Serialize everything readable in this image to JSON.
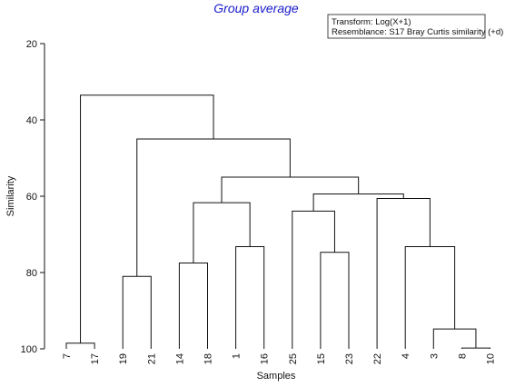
{
  "chart_data": {
    "type": "dendrogram",
    "title": "Group average",
    "xlabel": "Samples",
    "ylabel": "Similarity",
    "ylim": [
      20,
      100
    ],
    "y_inverted": true,
    "yticks": [
      20,
      40,
      60,
      80,
      100
    ],
    "leaves": [
      "7",
      "17",
      "19",
      "21",
      "14",
      "18",
      "1",
      "16",
      "25",
      "15",
      "23",
      "22",
      "4",
      "3",
      "8",
      "10"
    ],
    "merges": [
      {
        "left": "8",
        "right": "10",
        "similarity": 99.8
      },
      {
        "left": "7",
        "right": "17",
        "similarity": 98.5
      },
      {
        "left": "3",
        "right": "(8,10)",
        "similarity": 94.8
      },
      {
        "left": "15",
        "right": "23",
        "similarity": 74.7
      },
      {
        "left": "1",
        "right": "16",
        "similarity": 73.2
      },
      {
        "left": "4",
        "right": "(3,8,10)",
        "similarity": 73.2
      },
      {
        "left": "19",
        "right": "21",
        "similarity": 81.0
      },
      {
        "left": "14",
        "right": "18",
        "similarity": 77.5
      },
      {
        "left": "25",
        "right": "(15,23)",
        "similarity": 63.9
      },
      {
        "left": "(14,18)",
        "right": "(1,16)",
        "similarity": 61.7
      },
      {
        "left": "22",
        "right": "(4,3,8,10)",
        "similarity": 60.6
      },
      {
        "left": "(25,15,23)",
        "right": "(22,4,3,8,10)",
        "similarity": 59.4
      },
      {
        "left": "(14,18,1,16)",
        "right": "(25,15,23,22,4,3,8,10)",
        "similarity": 55.0
      },
      {
        "left": "(19,21)",
        "right": "(14,18,1,16,25,15,23,22,4,3,8,10)",
        "similarity": 45.0
      },
      {
        "left": "(7,17)",
        "right": "(19,21,14,18,1,16,25,15,23,22,4,3,8,10)",
        "similarity": 33.5
      }
    ],
    "legend": {
      "position": "top-right",
      "lines": [
        "Transform: Log(X+1)",
        "Resemblance: S17 Bray Curtis similarity (+d)"
      ]
    },
    "colors": {
      "title": "#1a1acc",
      "lines": "#111111"
    }
  }
}
